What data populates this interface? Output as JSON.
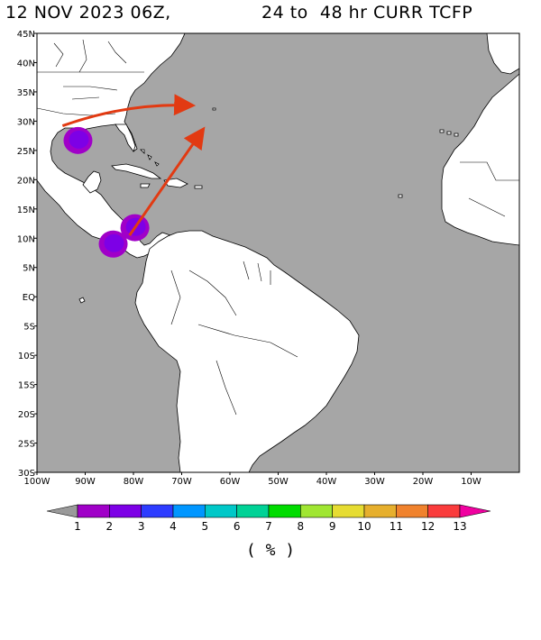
{
  "title": {
    "date": "12 NOV 2023 06Z,",
    "range": "24 to  48 hr CURR TCFP"
  },
  "colors": {
    "ocean": "#a6a6a6",
    "land": "#ffffff",
    "arrow": "#e23a12"
  },
  "map": {
    "projection": "cylindrical",
    "lon_range": [
      -100,
      0
    ],
    "lat_range": [
      -30,
      45
    ],
    "lat_labels": [
      "45N",
      "40N",
      "35N",
      "30N",
      "25N",
      "20N",
      "15N",
      "10N",
      "5N",
      "EQ",
      "5S",
      "10S",
      "15S",
      "20S",
      "25S",
      "30S"
    ],
    "lon_labels": [
      "100W",
      "90W",
      "80W",
      "70W",
      "60W",
      "50W",
      "40W",
      "30W",
      "20W",
      "10W"
    ],
    "probability_areas": [
      {
        "region": "Gulf of Mexico",
        "lon": -91.5,
        "lat": 26.7,
        "level": 2
      },
      {
        "region": "SW Caribbean",
        "lon": -79.7,
        "lat": 11.8,
        "level": 2
      },
      {
        "region": "Eastern Pacific",
        "lon": -84.2,
        "lat": 9.0,
        "level": 2
      }
    ],
    "motion_arrows": [
      {
        "from": [
          -94.7,
          29.2
        ],
        "to": [
          -68.2,
          32.7
        ]
      },
      {
        "from": [
          -80.8,
          10.5
        ],
        "to": [
          -65.8,
          28.3
        ]
      }
    ]
  },
  "colorbar": {
    "ticks": [
      "1",
      "2",
      "3",
      "4",
      "5",
      "6",
      "7",
      "8",
      "9",
      "10",
      "11",
      "12",
      "13"
    ],
    "colors": [
      "#9a9a9a",
      "#a000c8",
      "#7d00e6",
      "#2d3cff",
      "#0096ff",
      "#00c8c8",
      "#00d296",
      "#00dc00",
      "#a0e632",
      "#e6dc32",
      "#e6af2d",
      "#f0822d",
      "#fa3c3c",
      "#f000a0"
    ],
    "units": "( % )"
  }
}
